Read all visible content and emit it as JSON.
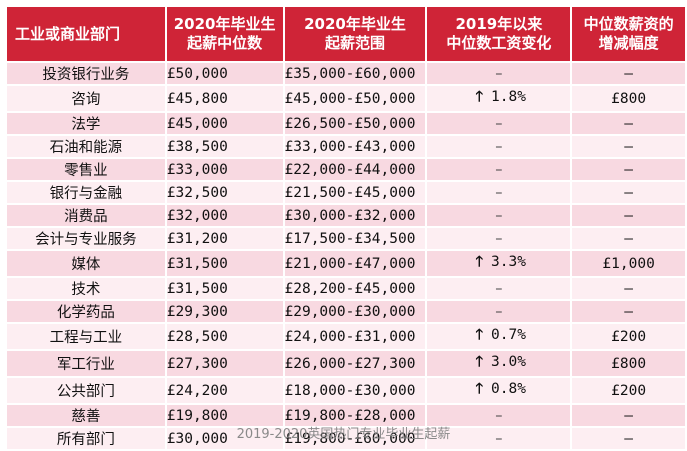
{
  "headers": {
    "sector": "工业或商业部门",
    "median_line1": "2020年毕业生",
    "median_line2": "起薪中位数",
    "range_line1": "2020年毕业生",
    "range_line2": "起薪范围",
    "change_line1": "2019年以来",
    "change_line2": "中位数工资变化",
    "increase_line1": "中位数薪资的",
    "increase_line2": "增减幅度"
  },
  "rows": [
    {
      "sector": "投资银行业务",
      "median": "£50,000",
      "range": "£35,000-£60,000",
      "change": "–",
      "increase": "–"
    },
    {
      "sector": "咨询",
      "median": "£45,800",
      "range": "£45,000-£50,000",
      "change": "1.8%",
      "increase": "£800"
    },
    {
      "sector": "法学",
      "median": "£45,000",
      "range": "£26,500-£50,000",
      "change": "–",
      "increase": "–"
    },
    {
      "sector": "石油和能源",
      "median": "£38,500",
      "range": "£33,000-£43,000",
      "change": "–",
      "increase": "–"
    },
    {
      "sector": "零售业",
      "median": "£33,000",
      "range": "£22,000-£44,000",
      "change": "–",
      "increase": "–"
    },
    {
      "sector": "银行与金融",
      "median": "£32,500",
      "range": "£21,500-£45,000",
      "change": "–",
      "increase": "–"
    },
    {
      "sector": "消费品",
      "median": "£32,000",
      "range": "£30,000-£32,000",
      "change": "–",
      "increase": "–"
    },
    {
      "sector": "会计与专业服务",
      "median": "£31,200",
      "range": "£17,500-£34,500",
      "change": "–",
      "increase": "–"
    },
    {
      "sector": "媒体",
      "median": "£31,500",
      "range": "£21,000-£47,000",
      "change": "3.3%",
      "increase": "£1,000"
    },
    {
      "sector": "技术",
      "median": "£31,500",
      "range": "£28,200-£45,000",
      "change": "–",
      "increase": "–"
    },
    {
      "sector": "化学药品",
      "median": "£29,300",
      "range": "£29,000-£30,000",
      "change": "–",
      "increase": "–"
    },
    {
      "sector": "工程与工业",
      "median": "£28,500",
      "range": "£24,000-£31,000",
      "change": "0.7%",
      "increase": "£200"
    },
    {
      "sector": "军工行业",
      "median": "£27,300",
      "range": "£26,000-£27,300",
      "change": "3.0%",
      "increase": "£800"
    },
    {
      "sector": "公共部门",
      "median": "£24,200",
      "range": "£18,000-£30,000",
      "change": "0.8%",
      "increase": "£200"
    },
    {
      "sector": "慈善",
      "median": "£19,800",
      "range": "£19,800-£28,000",
      "change": "–",
      "increase": "–"
    },
    {
      "sector": "所有部门",
      "median": "£30,000",
      "range": "£19,800-£60,000",
      "change": "–",
      "increase": "–"
    }
  ],
  "arrow_glyph": "🡑",
  "caption": "2019-2020英国热门专业毕业生起薪",
  "colors": {
    "header_bg": "#cf2437",
    "row_dark": "#f8d9e1",
    "row_light": "#fdeef2",
    "caption": "#8a8a8a"
  }
}
